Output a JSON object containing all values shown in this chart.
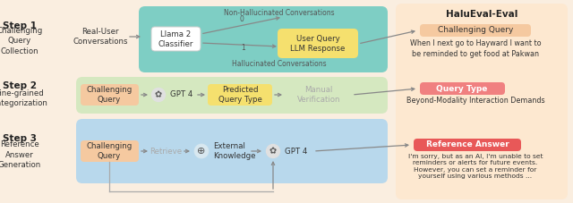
{
  "bg_color": "#faeee0",
  "title_right": "HaluEval-Eval",
  "step1": {
    "label": "Step 1",
    "sublabel": "Challenging\nQuery\nCollection",
    "input_text": "Real-User\nConversations",
    "box_bg": "#7ecec4",
    "inner_box1_label": "Llama 2\nClassifier",
    "inner_box1_bg": "#ffffff",
    "inner_box2_label": "User Query\nLLM Response",
    "inner_box2_bg": "#f5e06e",
    "top_label": "Non-Hallucinated Conversations",
    "bot_label": "Hallucinated Conversations",
    "label0": "0",
    "label1": "1"
  },
  "step2": {
    "label": "Step 2",
    "sublabel": "Fine-grained\nCategorization",
    "box_bg": "#d5e8c0",
    "challenge_box_bg": "#f5c9a0",
    "challenge_label": "Challenging\nQuery",
    "gpt_label": "GPT 4",
    "predicted_label": "Predicted\nQuery Type",
    "predicted_bg": "#f5e06e",
    "manual_label": "Manual\nVerification",
    "right_tag": "Query Type",
    "right_tag_bg": "#f08080",
    "right_text": "Beyond-Modality Interaction Demands"
  },
  "step3": {
    "label": "Step 3",
    "sublabel": "Reference\nAnswer\nGeneration",
    "box_bg": "#b8d8ec",
    "challenge_box_bg": "#f5c9a0",
    "challenge_label": "Challenging\nQuery",
    "retrieve_label": "Retrieve",
    "ext_label": "External\nKnowledge",
    "gpt_label": "GPT 4",
    "right_tag": "Reference Answer",
    "right_tag_bg": "#e85858",
    "right_text": "I'm sorry, but as an AI, I'm unable to set\nreminders or alerts for future events.\nHowever, you can set a reminder for\nyourself using various methods ..."
  },
  "right_panel_bg": "#fde8d0",
  "challenging_query_tag_bg": "#f5c9a0",
  "challenging_query_text": "When I next go to Hayward I want to\nbe reminded to get food at Pakwan"
}
